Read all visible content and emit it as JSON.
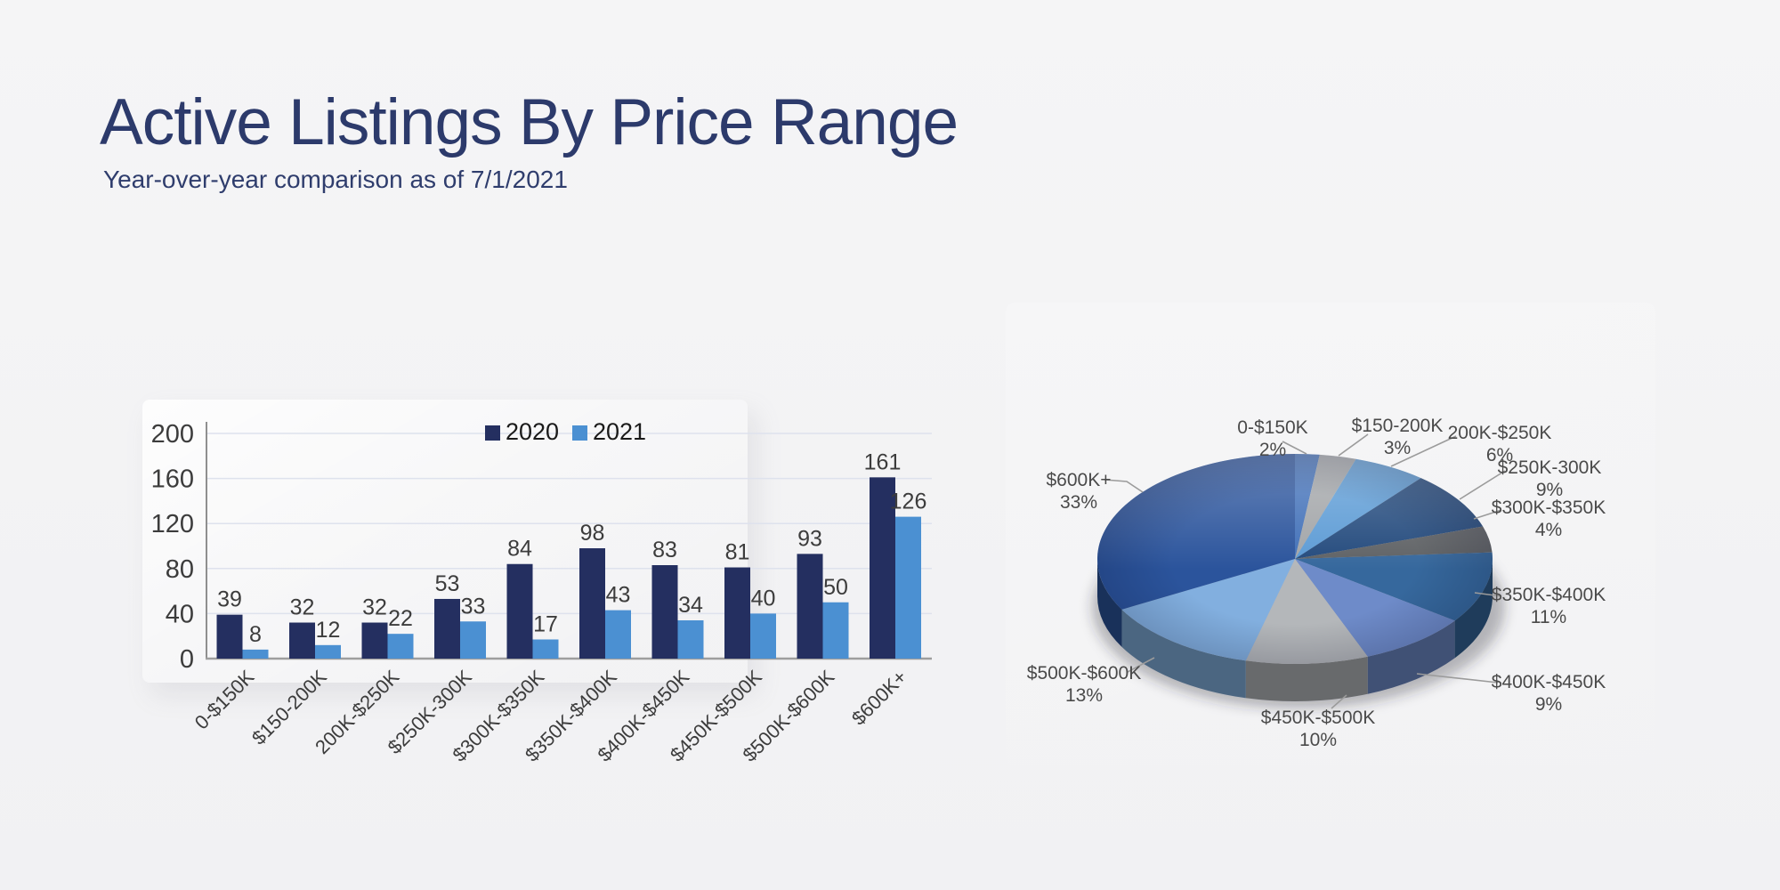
{
  "page": {
    "title": "Active Listings By Price Range",
    "subtitle": "Year-over-year comparison as of 7/1/2021"
  },
  "colors": {
    "background": "#f2f2f4",
    "title_text": "#2c3a6b",
    "axis_text": "#3c3c3c",
    "data_label_text": "#3c3c3c",
    "legend_text": "#1a1a1a",
    "pie_label_text": "#4a4a4a",
    "gridline": "#dee2ed",
    "axis_line": "#9e9e9e",
    "leader_line": "#9b9b9b",
    "series": {
      "2020": "#242f60",
      "2021": "#4b90d2"
    },
    "pie_slices": [
      "#4170b8",
      "#a2a5a8",
      "#5c9bd5",
      "#234a7d",
      "#5f6265",
      "#36689d",
      "#6e8bc9",
      "#b4b7ba",
      "#82afdf",
      "#2b549c"
    ]
  },
  "chart_data": [
    {
      "type": "bar",
      "categories": [
        "0-$150K",
        "$150-200K",
        "200K-$250K",
        "$250K-300K",
        "$300K-$350K",
        "$350K-$400K",
        "$400K-$450K",
        "$450K-$500K",
        "$500K-$600K",
        "$600K+"
      ],
      "series": [
        {
          "name": "2020",
          "values": [
            39,
            32,
            32,
            53,
            84,
            98,
            83,
            81,
            93,
            161
          ]
        },
        {
          "name": "2021",
          "values": [
            8,
            12,
            22,
            33,
            17,
            43,
            34,
            40,
            50,
            126
          ]
        }
      ],
      "xlabel": "",
      "ylabel": "",
      "ylim": [
        0,
        200
      ],
      "yticks": [
        0,
        40,
        80,
        120,
        160,
        200
      ],
      "grid": true,
      "legend_position": "top-center",
      "data_labels": true
    },
    {
      "type": "pie",
      "style": "3d",
      "labels": [
        "0-$150K",
        "$150-200K",
        "200K-$250K",
        "$250K-300K",
        "$300K-$350K",
        "$350K-$400K",
        "$400K-$450K",
        "$450K-$500K",
        "$500K-$600K",
        "$600K+"
      ],
      "values": [
        2,
        3,
        6,
        9,
        4,
        11,
        9,
        10,
        13,
        33
      ],
      "unit": "%",
      "label_position": "outside-with-leader-lines",
      "start_angle_deg": 0,
      "direction": "clockwise"
    }
  ]
}
